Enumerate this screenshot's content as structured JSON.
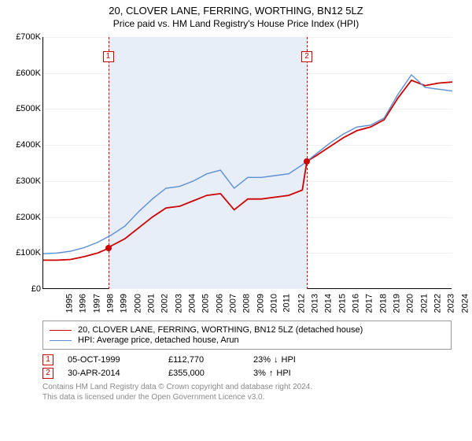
{
  "title": {
    "main": "20, CLOVER LANE, FERRING, WORTHING, BN12 5LZ",
    "sub": "Price paid vs. HM Land Registry's House Price Index (HPI)",
    "fontsize_main": 13,
    "fontsize_sub": 12
  },
  "chart": {
    "type": "line",
    "background_color": "#ffffff",
    "xlim": [
      1995,
      2025
    ],
    "ylim": [
      0,
      700000
    ],
    "ytick_step": 100000,
    "yticklabels": [
      "£0",
      "£100K",
      "£200K",
      "£300K",
      "£400K",
      "£500K",
      "£600K",
      "£700K"
    ],
    "xticks": [
      1995,
      1996,
      1997,
      1998,
      1999,
      2000,
      2001,
      2002,
      2003,
      2004,
      2005,
      2006,
      2007,
      2008,
      2009,
      2010,
      2011,
      2012,
      2013,
      2014,
      2015,
      2016,
      2017,
      2018,
      2019,
      2020,
      2021,
      2022,
      2023,
      2024
    ],
    "grid_color": "#f0f0f0",
    "fill_band_color": "#e8eef7",
    "fill_band_xrange": [
      1999.76,
      2014.33
    ],
    "vlines": [
      {
        "x": 1999.76,
        "color": "#cc0000",
        "dash": true,
        "marker": "1",
        "marker_y": 660000
      },
      {
        "x": 2014.33,
        "color": "#cc0000",
        "dash": true,
        "marker": "2",
        "marker_y": 660000
      }
    ],
    "series": [
      {
        "name": "price_paid",
        "label": "20, CLOVER LANE, FERRING, WORTHING, BN12 5LZ (detached house)",
        "color": "#cc0000",
        "line_width": 1.8,
        "x": [
          1995,
          1996,
          1997,
          1998,
          1999,
          1999.76,
          2000,
          2001,
          2002,
          2003,
          2004,
          2005,
          2006,
          2007,
          2008,
          2009,
          2010,
          2011,
          2012,
          2013,
          2014,
          2014.33,
          2015,
          2016,
          2017,
          2018,
          2019,
          2020,
          2021,
          2022,
          2023,
          2024,
          2025
        ],
        "y": [
          80000,
          80000,
          82000,
          90000,
          100000,
          112770,
          120000,
          140000,
          170000,
          200000,
          225000,
          230000,
          245000,
          260000,
          265000,
          220000,
          250000,
          250000,
          255000,
          260000,
          275000,
          355000,
          370000,
          395000,
          420000,
          440000,
          450000,
          470000,
          530000,
          580000,
          565000,
          572000,
          575000
        ]
      },
      {
        "name": "hpi",
        "label": "HPI: Average price, detached house, Arun",
        "color": "#5a8fd6",
        "line_width": 1.4,
        "x": [
          1995,
          1996,
          1997,
          1998,
          1999,
          2000,
          2001,
          2002,
          2003,
          2004,
          2005,
          2006,
          2007,
          2008,
          2009,
          2010,
          2011,
          2012,
          2013,
          2014,
          2015,
          2016,
          2017,
          2018,
          2019,
          2020,
          2021,
          2022,
          2023,
          2024,
          2025
        ],
        "y": [
          98000,
          100000,
          105000,
          115000,
          130000,
          150000,
          175000,
          215000,
          250000,
          280000,
          285000,
          300000,
          320000,
          330000,
          280000,
          310000,
          310000,
          315000,
          320000,
          345000,
          375000,
          405000,
          430000,
          450000,
          455000,
          475000,
          540000,
          595000,
          560000,
          555000,
          550000
        ]
      }
    ],
    "sale_points": [
      {
        "x": 1999.76,
        "y": 112770,
        "color": "#cc0000",
        "size": 8
      },
      {
        "x": 2014.33,
        "y": 355000,
        "color": "#cc0000",
        "size": 8
      }
    ]
  },
  "legend": {
    "position": "below",
    "border_color": "#999999",
    "fontsize": 11,
    "items": [
      {
        "color": "#cc0000",
        "label": "20, CLOVER LANE, FERRING, WORTHING, BN12 5LZ (detached house)"
      },
      {
        "color": "#5a8fd6",
        "label": "HPI: Average price, detached house, Arun"
      }
    ]
  },
  "sales": [
    {
      "marker": "1",
      "date": "05-OCT-1999",
      "price": "£112,770",
      "delta_pct": "23%",
      "delta_dir": "down",
      "delta_label": "HPI"
    },
    {
      "marker": "2",
      "date": "30-APR-2014",
      "price": "£355,000",
      "delta_pct": "3%",
      "delta_dir": "up",
      "delta_label": "HPI"
    }
  ],
  "copyright": {
    "line1": "Contains HM Land Registry data © Crown copyright and database right 2024.",
    "line2": "This data is licensed under the Open Government Licence v3.0."
  },
  "arrows": {
    "up": "↑",
    "down": "↓"
  }
}
